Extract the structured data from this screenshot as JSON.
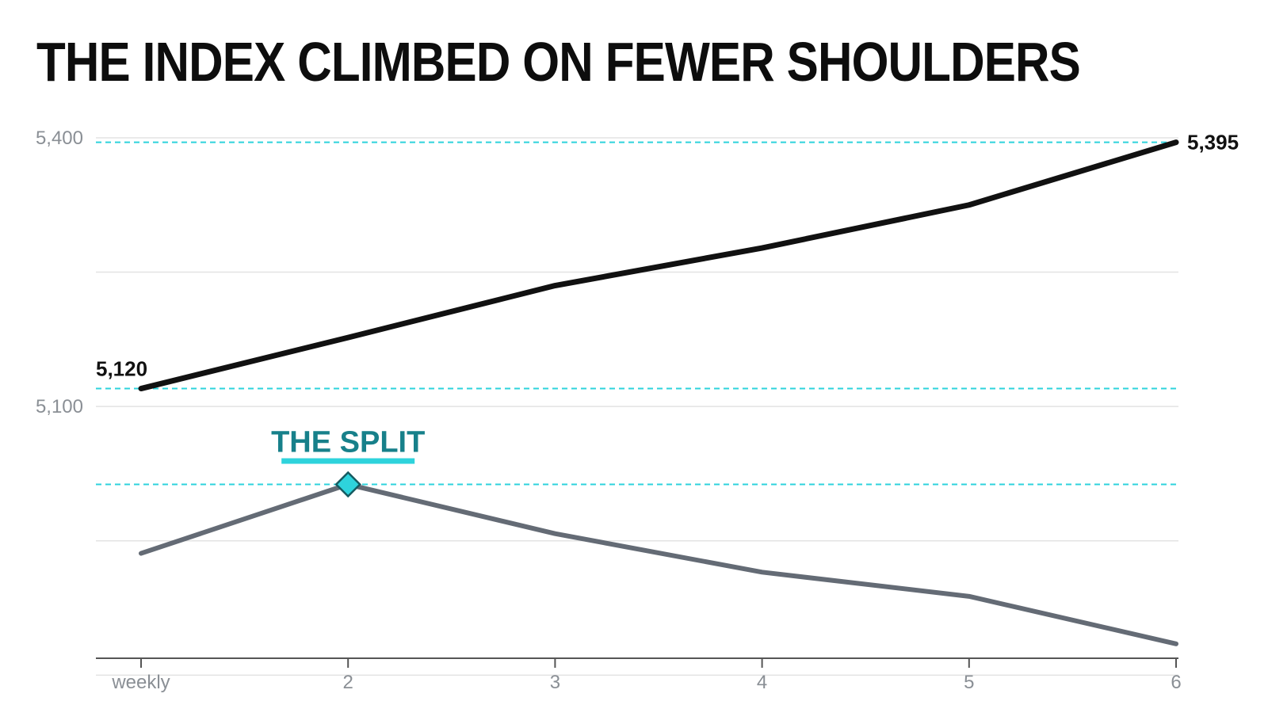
{
  "title": "THE INDEX CLIMBED ON FEWER SHOULDERS",
  "chart_data": {
    "type": "line",
    "title": "THE INDEX CLIMBED ON FEWER SHOULDERS",
    "xlabel": "",
    "ylabel": "",
    "categories": [
      "weekly",
      "2",
      "3",
      "4",
      "5",
      "6"
    ],
    "yticks": [
      "5,400",
      "5,100"
    ],
    "ylim": [
      4795,
      5415
    ],
    "grid": true,
    "series": [
      {
        "name": "",
        "color": "#111111",
        "values": [
          5120,
          5177,
          5235,
          5277,
          5325,
          5395
        ]
      },
      {
        "name": "",
        "color": "#646b75",
        "values": [
          4936,
          5013,
          4958,
          4915,
          4888,
          4835
        ]
      }
    ],
    "annotations": {
      "start_label": "5,120",
      "end_label": "5,395",
      "split_label": "THE SPLIT",
      "split_index": 1,
      "reference_lines": [
        5395,
        5120,
        5013
      ]
    },
    "colors": {
      "accent": "#2ed3dc",
      "annotation_text": "#17808a",
      "grid": "#e3e3e3",
      "axis": "#555555"
    }
  }
}
